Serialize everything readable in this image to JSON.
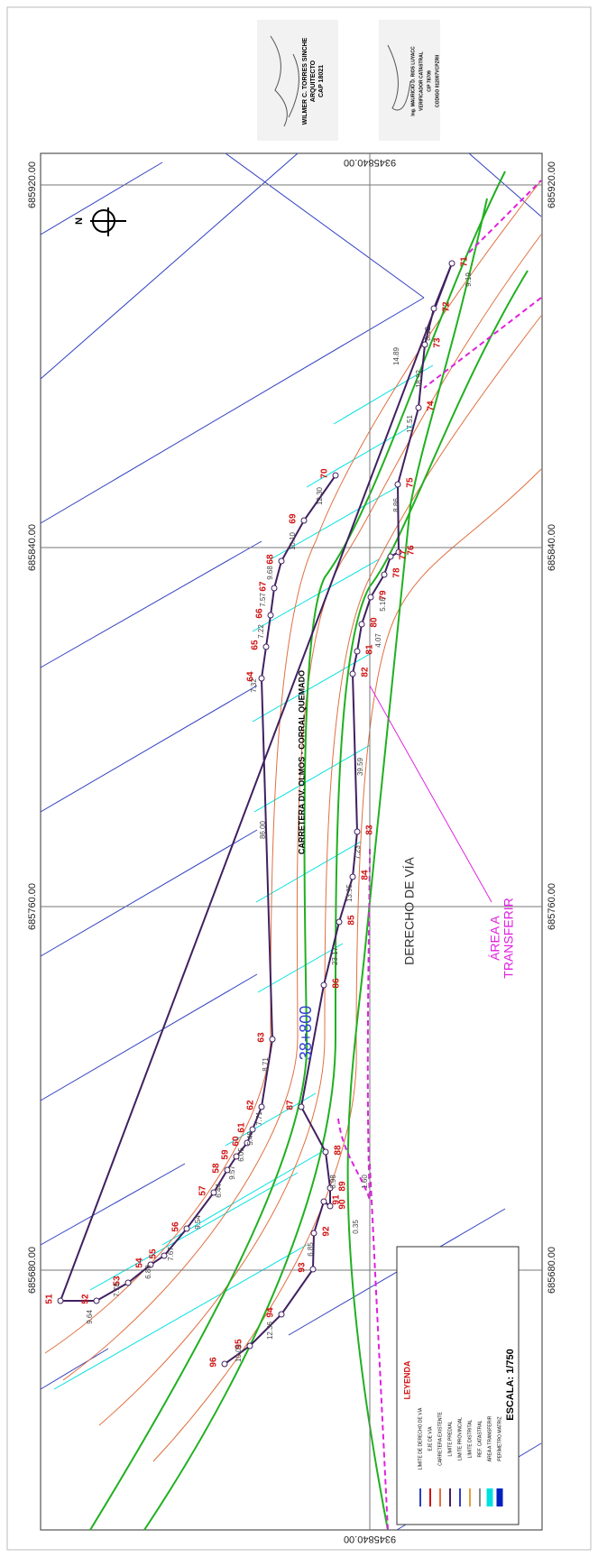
{
  "signatures": [
    {
      "lines": [
        "WILMER C. TORRES SINCHE",
        "ARQUITECTO",
        "CAP 18021"
      ]
    },
    {
      "lines": [
        "Ing. MAURICIO D. RIOS LUYACC",
        "VERIFICADOR CATASTRAL",
        "CIP 78709",
        "CODIGO 012007VCPZRII"
      ]
    }
  ],
  "coordinates": {
    "east": [
      "685920.00",
      "685840.00",
      "685760.00",
      "685680.00"
    ],
    "north": "9345840.00"
  },
  "points": [
    "51",
    "52",
    "53",
    "54",
    "55",
    "56",
    "57",
    "58",
    "59",
    "60",
    "61",
    "62",
    "63",
    "64",
    "65",
    "66",
    "67",
    "68",
    "69",
    "70",
    "71",
    "72",
    "73",
    "74",
    "75",
    "76",
    "77",
    "78",
    "79",
    "80",
    "81",
    "82",
    "83",
    "84",
    "85",
    "86",
    "87",
    "88",
    "89",
    "90",
    "91",
    "92",
    "93",
    "94",
    "95",
    "96"
  ],
  "distances": [
    "9.19",
    "14.89",
    "8.12",
    "18.92",
    "17.51",
    "8.86",
    "39.59",
    "7.23",
    "13.95",
    "23.17",
    "8.71",
    "7.71",
    "5.48",
    "6.05",
    "9.57",
    "6.44",
    "9.54",
    "7.67",
    "6.80",
    "7.78",
    "9.64",
    "86.00",
    "7.22",
    "7.32",
    "7.57",
    "9.68",
    "10.10",
    "12.30",
    "6.98",
    "6.85",
    "12.36",
    "10.01",
    "1.60",
    "0.35",
    "5.16",
    "4.07"
  ],
  "labels": {
    "road": "CARRETERA DV. OLMOS - CORRAL QUEMADO",
    "row": "DERECHO  DE  VÍA",
    "area": [
      "ÁREA A",
      "TRANSFERIR"
    ],
    "station": "38+800"
  },
  "legend": {
    "title": "LEYENDA",
    "items": [
      "LÍMITE DE DERECHO DE VÍA",
      "EJE DE VÍA",
      "CARRETERA EXISTENTE",
      "LÍMITE PREDIAL",
      "LÍMITE PROVINCIAL",
      "LÍMITE DISTRITAL",
      "REF. CATASTRAL",
      "ÁREA A TRANSFERIR",
      "PERÍMETRO MATRIZ"
    ],
    "scale": "ESCALA: 1/750"
  }
}
